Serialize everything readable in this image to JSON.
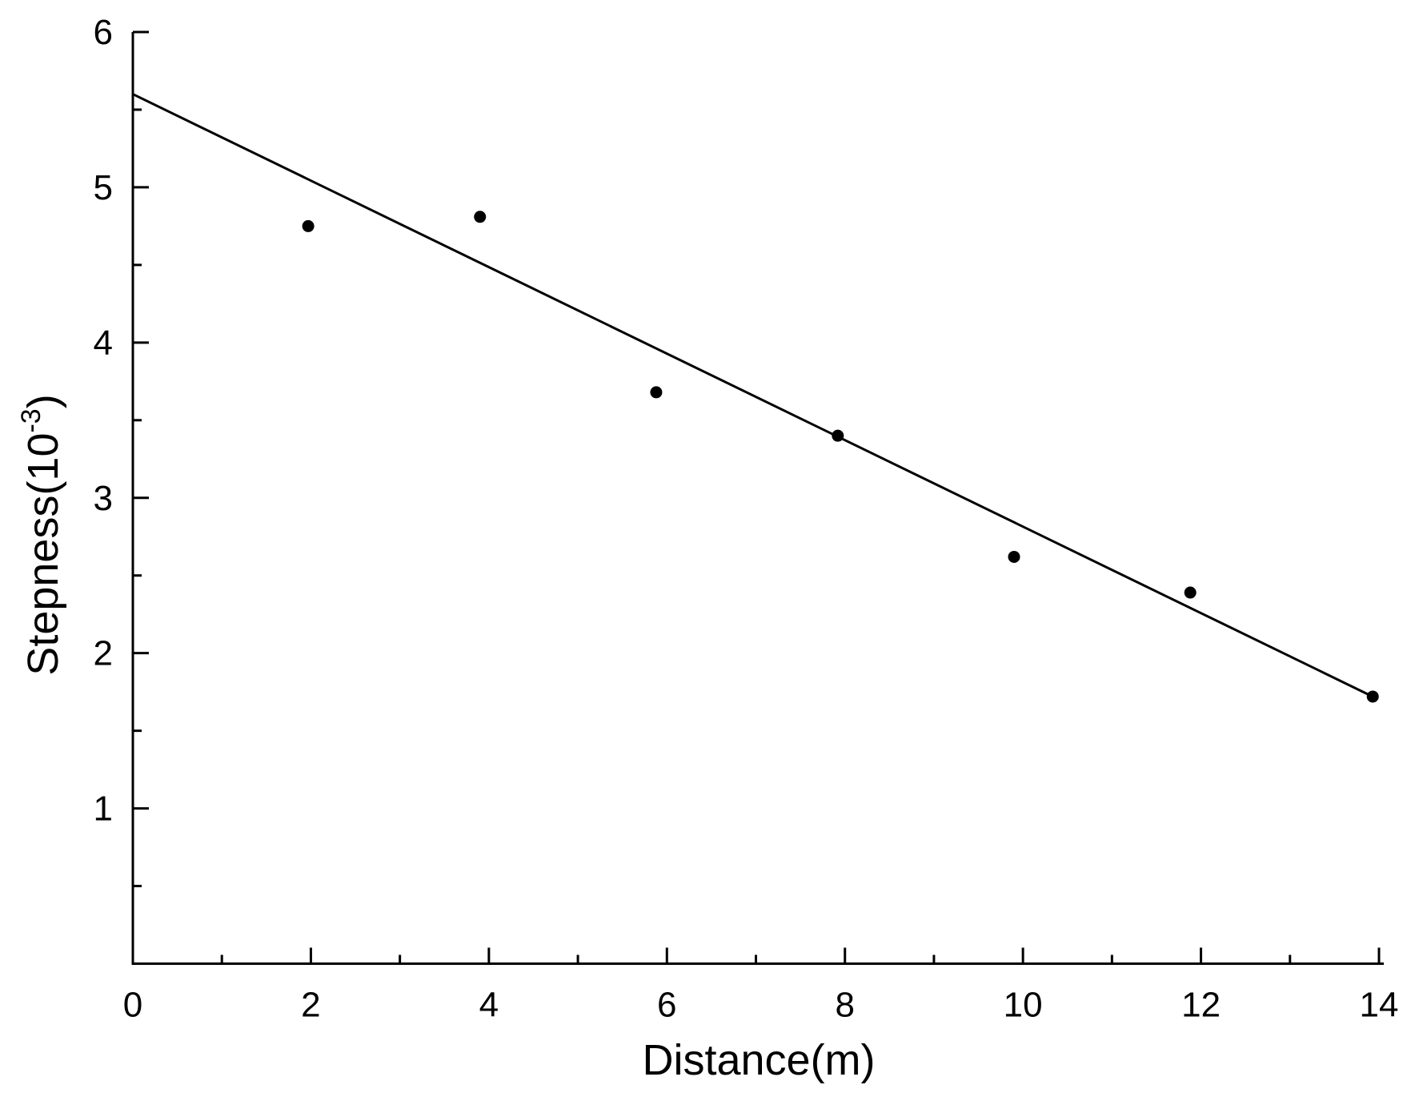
{
  "chart_data": {
    "type": "scatter",
    "xlabel": "Distance(m)",
    "ylabel_main": "Stepness(10",
    "ylabel_exp": "-3",
    "ylabel_close": ")",
    "xlim": [
      0,
      14
    ],
    "ylim": [
      0,
      6
    ],
    "x_major_ticks": [
      0,
      2,
      4,
      6,
      8,
      10,
      12,
      14
    ],
    "x_minor_ticks": [
      1,
      3,
      5,
      7,
      9,
      11,
      13
    ],
    "y_major_ticks": [
      1,
      2,
      3,
      4,
      5,
      6
    ],
    "y_minor_ticks": [
      0.5,
      1.5,
      2.5,
      3.5,
      4.5,
      5.5
    ],
    "x_tick_labels": [
      "0",
      "2",
      "4",
      "6",
      "8",
      "10",
      "12",
      "14"
    ],
    "y_tick_labels": [
      "1",
      "2",
      "3",
      "4",
      "5",
      "6"
    ],
    "grid": false,
    "colors": {
      "marker": "#000000",
      "line": "#000000",
      "axes": "#000000"
    },
    "points": [
      {
        "x": 1.97,
        "y": 4.75
      },
      {
        "x": 3.9,
        "y": 4.81
      },
      {
        "x": 5.88,
        "y": 3.68
      },
      {
        "x": 7.92,
        "y": 3.4
      },
      {
        "x": 9.9,
        "y": 2.62
      },
      {
        "x": 11.88,
        "y": 2.39
      },
      {
        "x": 13.93,
        "y": 1.72
      }
    ],
    "fit_line": {
      "x": [
        0,
        13.93
      ],
      "y": [
        5.6,
        1.72
      ]
    }
  }
}
